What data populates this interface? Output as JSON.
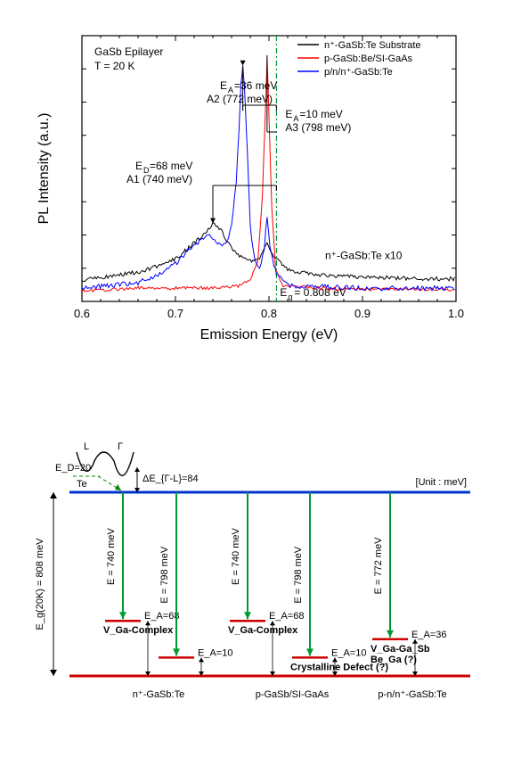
{
  "chart": {
    "type": "line",
    "title_line1": "GaSb Epilayer",
    "title_line2": "T = 20 K",
    "xlabel": "Emission Energy (eV)",
    "ylabel": "PL Intensity (a.u.)",
    "xlim": [
      0.6,
      1.0
    ],
    "xticks": [
      0.6,
      0.7,
      0.8,
      0.9,
      1.0
    ],
    "background": "#ffffff",
    "axis_color": "#000000",
    "legend": {
      "items": [
        {
          "label": "n⁺-GaSb:Te Substrate",
          "color": "#000000"
        },
        {
          "label": "p-GaSb:Be/SI-GaAs",
          "color": "#ff0000"
        },
        {
          "label": "p/n/n⁺-GaSb:Te",
          "color": "#0000ff"
        }
      ]
    },
    "reference_line": {
      "x": 0.808,
      "color": "#009933",
      "label": "E_g = 0.808 eV"
    },
    "traces": {
      "black": {
        "color": "#000000",
        "note": "n⁺-GaSb:Te   x10",
        "points": [
          [
            0.6,
            0.08
          ],
          [
            0.62,
            0.09
          ],
          [
            0.64,
            0.1
          ],
          [
            0.66,
            0.11
          ],
          [
            0.68,
            0.13
          ],
          [
            0.7,
            0.16
          ],
          [
            0.71,
            0.19
          ],
          [
            0.72,
            0.22
          ],
          [
            0.73,
            0.25
          ],
          [
            0.735,
            0.27
          ],
          [
            0.74,
            0.29
          ],
          [
            0.745,
            0.28
          ],
          [
            0.75,
            0.26
          ],
          [
            0.755,
            0.23
          ],
          [
            0.76,
            0.2
          ],
          [
            0.77,
            0.17
          ],
          [
            0.78,
            0.15
          ],
          [
            0.79,
            0.16
          ],
          [
            0.798,
            0.22
          ],
          [
            0.805,
            0.17
          ],
          [
            0.82,
            0.12
          ],
          [
            0.85,
            0.1
          ],
          [
            0.88,
            0.095
          ],
          [
            0.92,
            0.09
          ],
          [
            0.96,
            0.085
          ],
          [
            1.0,
            0.085
          ]
        ]
      },
      "red": {
        "color": "#ff0000",
        "points": [
          [
            0.6,
            0.04
          ],
          [
            0.63,
            0.045
          ],
          [
            0.66,
            0.05
          ],
          [
            0.69,
            0.05
          ],
          [
            0.72,
            0.05
          ],
          [
            0.74,
            0.05
          ],
          [
            0.76,
            0.055
          ],
          [
            0.77,
            0.06
          ],
          [
            0.78,
            0.08
          ],
          [
            0.788,
            0.15
          ],
          [
            0.793,
            0.4
          ],
          [
            0.796,
            0.7
          ],
          [
            0.798,
            0.92
          ],
          [
            0.8,
            0.7
          ],
          [
            0.803,
            0.35
          ],
          [
            0.807,
            0.12
          ],
          [
            0.815,
            0.06
          ],
          [
            0.85,
            0.05
          ],
          [
            0.9,
            0.045
          ],
          [
            0.95,
            0.045
          ],
          [
            1.0,
            0.045
          ]
        ]
      },
      "blue": {
        "color": "#0000ff",
        "points": [
          [
            0.6,
            0.05
          ],
          [
            0.63,
            0.06
          ],
          [
            0.66,
            0.07
          ],
          [
            0.68,
            0.1
          ],
          [
            0.7,
            0.14
          ],
          [
            0.71,
            0.18
          ],
          [
            0.72,
            0.21
          ],
          [
            0.73,
            0.24
          ],
          [
            0.735,
            0.25
          ],
          [
            0.74,
            0.24
          ],
          [
            0.745,
            0.22
          ],
          [
            0.75,
            0.21
          ],
          [
            0.755,
            0.22
          ],
          [
            0.76,
            0.28
          ],
          [
            0.765,
            0.45
          ],
          [
            0.768,
            0.65
          ],
          [
            0.77,
            0.82
          ],
          [
            0.772,
            0.88
          ],
          [
            0.774,
            0.8
          ],
          [
            0.777,
            0.55
          ],
          [
            0.78,
            0.28
          ],
          [
            0.785,
            0.15
          ],
          [
            0.79,
            0.12
          ],
          [
            0.795,
            0.2
          ],
          [
            0.798,
            0.32
          ],
          [
            0.801,
            0.2
          ],
          [
            0.808,
            0.1
          ],
          [
            0.82,
            0.06
          ],
          [
            0.86,
            0.055
          ],
          [
            0.9,
            0.05
          ],
          [
            0.95,
            0.05
          ],
          [
            1.0,
            0.05
          ]
        ]
      }
    },
    "annotations": {
      "A1_a": "E_D=68 meV",
      "A1_b": "A1 (740 meV)",
      "A2_a": "E_A=36 meV",
      "A2_b": "A2 (772 meV)",
      "A3_a": "E_A=10 meV",
      "A3_b": "A3 (798 meV)"
    }
  },
  "diagram": {
    "unit_label": "[Unit : meV]",
    "eg_label": "E_g(20K) = 808 meV",
    "band": {
      "ED_label": "E_D=20",
      "Te_label": "Te",
      "L_label": "L",
      "G_label": "Γ",
      "dE_label": "ΔE_{Γ-L}=84"
    },
    "cb_color": "#0033cc",
    "vb_color": "#cc0000",
    "arrow_color": "#009933",
    "level_color": "#cc0000",
    "dash_color": "#008800",
    "sections": [
      {
        "name": "n⁺-GaSb:Te",
        "transitions": [
          {
            "E": "E = 740 meV",
            "Ea": "E_A=68",
            "sub": "V_Ga-Complex",
            "depth": 0.7
          },
          {
            "E": "E = 798 meV",
            "Ea": "E_A=10",
            "sub": "",
            "depth": 0.9
          }
        ]
      },
      {
        "name": "p-GaSb/SI-GaAs",
        "transitions": [
          {
            "E": "E = 740 meV",
            "Ea": "E_A=68",
            "sub": "V_Ga-Complex",
            "depth": 0.7
          },
          {
            "E": "E = 798 meV",
            "Ea": "E_A=10",
            "sub": "Crystalline Defect (?)",
            "depth": 0.9
          }
        ]
      },
      {
        "name": "p-n/n⁺-GaSb:Te",
        "transitions": [
          {
            "E": "E = 772 meV",
            "Ea": "E_A=36",
            "sub": "V_Ga-Ga_Sb\nBe_Ga (?)",
            "depth": 0.8
          }
        ]
      }
    ]
  }
}
